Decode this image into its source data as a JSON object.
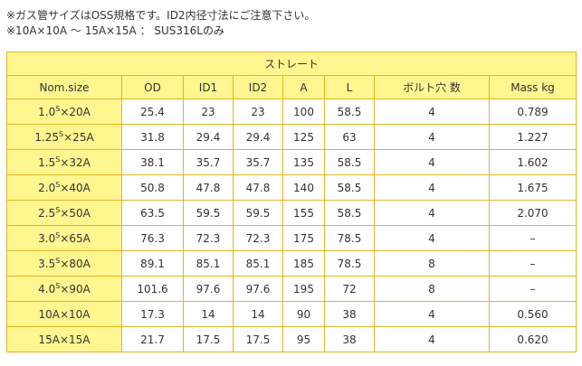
{
  "notes": [
    "※ガス管サイズはOSS規格です。ID2内径寸法にご注意下さい。",
    "※10A×10A 〜 15A×15A ： SUS316Lのみ"
  ],
  "table": {
    "title": "ストレート",
    "columns": [
      "Nom.size",
      "OD",
      "ID1",
      "ID2",
      "A",
      "L",
      "ボルト穴 数",
      "Mass kg"
    ],
    "rows": [
      {
        "nom": [
          "1.0",
          "S",
          "×20A"
        ],
        "cells": [
          "25.4",
          "23",
          "23",
          "100",
          "58.5",
          "4",
          "0.789"
        ]
      },
      {
        "nom": [
          "1.25",
          "S",
          "×25A"
        ],
        "cells": [
          "31.8",
          "29.4",
          "29.4",
          "125",
          "63",
          "4",
          "1.227"
        ]
      },
      {
        "nom": [
          "1.5",
          "S",
          "×32A"
        ],
        "cells": [
          "38.1",
          "35.7",
          "35.7",
          "135",
          "58.5",
          "4",
          "1.602"
        ]
      },
      {
        "nom": [
          "2.0",
          "S",
          "×40A"
        ],
        "cells": [
          "50.8",
          "47.8",
          "47.8",
          "140",
          "58.5",
          "4",
          "1.675"
        ]
      },
      {
        "nom": [
          "2.5",
          "S",
          "×50A"
        ],
        "cells": [
          "63.5",
          "59.5",
          "59.5",
          "155",
          "58.5",
          "4",
          "2.070"
        ]
      },
      {
        "nom": [
          "3.0",
          "S",
          "×65A"
        ],
        "cells": [
          "76.3",
          "72.3",
          "72.3",
          "175",
          "78.5",
          "4",
          "–"
        ]
      },
      {
        "nom": [
          "3.5",
          "S",
          "×80A"
        ],
        "cells": [
          "89.1",
          "85.1",
          "85.1",
          "185",
          "78.5",
          "8",
          "–"
        ]
      },
      {
        "nom": [
          "4.0",
          "S",
          "×90A"
        ],
        "cells": [
          "101.6",
          "97.6",
          "97.6",
          "195",
          "72",
          "8",
          "–"
        ]
      },
      {
        "nom": [
          "10A×10A",
          "",
          ""
        ],
        "cells": [
          "17.3",
          "14",
          "14",
          "90",
          "38",
          "4",
          "0.560"
        ]
      },
      {
        "nom": [
          "15A×15A",
          "",
          ""
        ],
        "cells": [
          "21.7",
          "17.5",
          "17.5",
          "95",
          "38",
          "4",
          "0.620"
        ]
      }
    ]
  }
}
